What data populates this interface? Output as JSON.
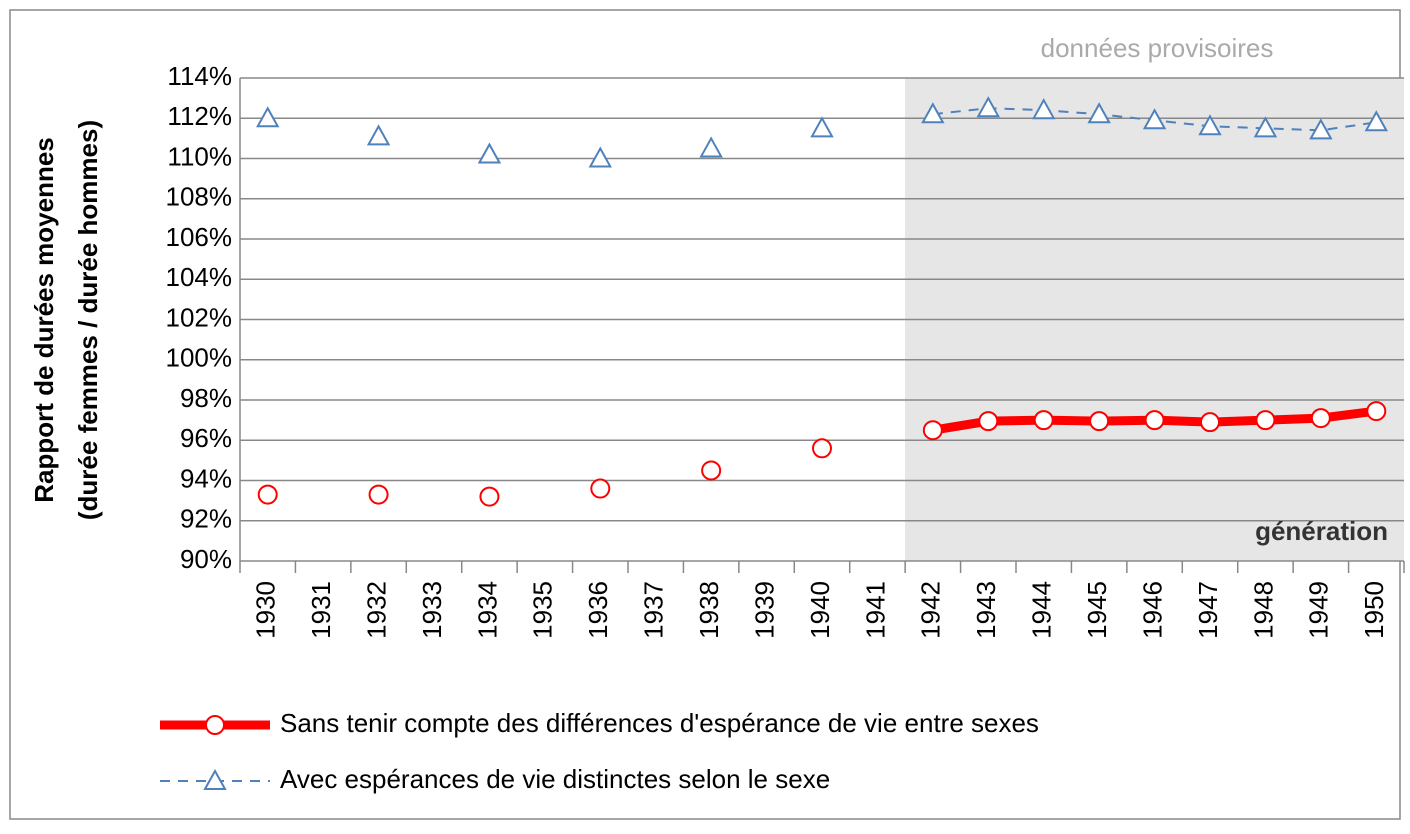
{
  "chart_data": {
    "type": "line",
    "ylabel": [
      "Rapport de durées moyennes",
      "(durée femmes / durée hommes)"
    ],
    "annotations": [
      "données provisoires",
      "génération"
    ],
    "categories": [
      "1930",
      "1931",
      "1932",
      "1933",
      "1934",
      "1935",
      "1936",
      "1937",
      "1938",
      "1939",
      "1940",
      "1941",
      "1942",
      "1943",
      "1944",
      "1945",
      "1946",
      "1947",
      "1948",
      "1949",
      "1950"
    ],
    "series": [
      {
        "name": "Sans tenir compte des différences d'espérance de vie entre sexes",
        "color": "#ff0000",
        "values": [
          93.3,
          null,
          93.3,
          null,
          93.2,
          null,
          93.6,
          null,
          94.5,
          null,
          95.6,
          null,
          96.5,
          96.95,
          97.0,
          96.95,
          97.0,
          96.9,
          97.0,
          97.1,
          97.45
        ]
      },
      {
        "name": "Avec espérances de vie distinctes selon le sexe",
        "color": "#4f81bd",
        "values": [
          112.0,
          null,
          111.1,
          null,
          110.2,
          null,
          110.0,
          null,
          110.5,
          null,
          111.5,
          null,
          112.2,
          112.5,
          112.4,
          112.2,
          111.9,
          111.6,
          111.5,
          111.4,
          111.8
        ]
      }
    ],
    "ylim": [
      90,
      114
    ],
    "yticks": [
      {
        "value": 90,
        "label": "90%"
      },
      {
        "value": 92,
        "label": "92%"
      },
      {
        "value": 94,
        "label": "94%"
      },
      {
        "value": 96,
        "label": "96%"
      },
      {
        "value": 98,
        "label": "98%"
      },
      {
        "value": 100,
        "label": "100%"
      },
      {
        "value": 102,
        "label": "102%"
      },
      {
        "value": 104,
        "label": "104%"
      },
      {
        "value": 106,
        "label": "106%"
      },
      {
        "value": 108,
        "label": "108%"
      },
      {
        "value": 110,
        "label": "110%"
      },
      {
        "value": 112,
        "label": "112%"
      },
      {
        "value": 114,
        "label": "114%"
      }
    ],
    "grid": true
  }
}
